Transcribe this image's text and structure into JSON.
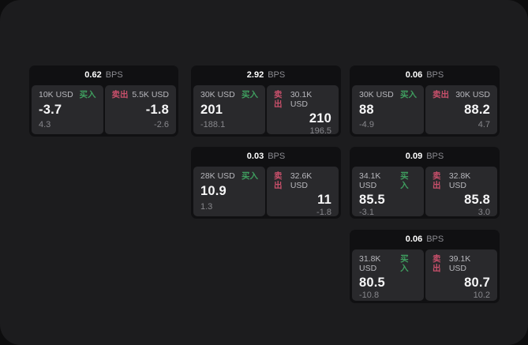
{
  "labels": {
    "buy": "买入",
    "sell": "卖出",
    "bps_unit": "BPS"
  },
  "colors": {
    "window_background": "#1c1c1e",
    "outer_background": "#0d0d0e",
    "card_background": "#101012",
    "panel_background": "#29292c",
    "buy_green": "#3f9e5f",
    "sell_red": "#c9506b",
    "value_white": "#f7f7f8",
    "muted_gray": "#87878c"
  },
  "cards": [
    {
      "bps": "0.62",
      "buy": {
        "amount": "10K USD",
        "value": "-3.7",
        "delta": "4.3"
      },
      "sell": {
        "amount": "5.5K USD",
        "value": "-1.8",
        "delta": "-2.6"
      }
    },
    {
      "bps": "2.92",
      "buy": {
        "amount": "30K USD",
        "value": "201",
        "delta": "-188.1"
      },
      "sell": {
        "amount": "30.1K USD",
        "value": "210",
        "delta": "196.5"
      }
    },
    {
      "bps": "0.06",
      "buy": {
        "amount": "30K USD",
        "value": "88",
        "delta": "-4.9"
      },
      "sell": {
        "amount": "30K USD",
        "value": "88.2",
        "delta": "4.7"
      }
    },
    {
      "bps": "0.03",
      "buy": {
        "amount": "28K USD",
        "value": "10.9",
        "delta": "1.3"
      },
      "sell": {
        "amount": "32.6K USD",
        "value": "11",
        "delta": "-1.8"
      }
    },
    {
      "bps": "0.09",
      "buy": {
        "amount": "34.1K USD",
        "value": "85.5",
        "delta": "-3.1"
      },
      "sell": {
        "amount": "32.8K USD",
        "value": "85.8",
        "delta": "3.0"
      }
    },
    {
      "bps": "0.06",
      "buy": {
        "amount": "31.8K USD",
        "value": "80.5",
        "delta": "-10.8"
      },
      "sell": {
        "amount": "39.1K USD",
        "value": "80.7",
        "delta": "10.2"
      }
    }
  ]
}
